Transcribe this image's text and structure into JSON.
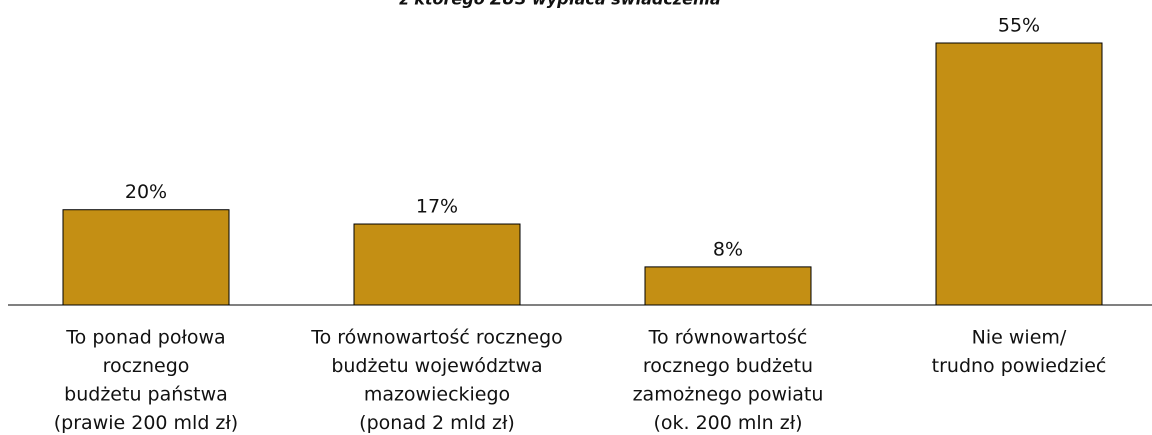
{
  "chart_data": {
    "type": "bar",
    "title": "z którego ZUS wypłaca świadczenia",
    "categories": [
      [
        "To ponad połowa",
        "rocznego",
        "budżetu państwa",
        "(prawie 200 mld zł)"
      ],
      [
        "To równowartość rocznego",
        "budżetu województwa",
        "mazowieckiego",
        "(ponad 2 mld zł)"
      ],
      [
        "To równowartość",
        "rocznego budżetu",
        "zamożnego powiatu",
        "(ok. 200 mln zł)"
      ],
      [
        "Nie wiem/",
        "trudno powiedzieć"
      ]
    ],
    "values": [
      20,
      17,
      8,
      55
    ],
    "value_labels": [
      "20%",
      "17%",
      "8%",
      "55%"
    ],
    "color": "#c48f14"
  }
}
